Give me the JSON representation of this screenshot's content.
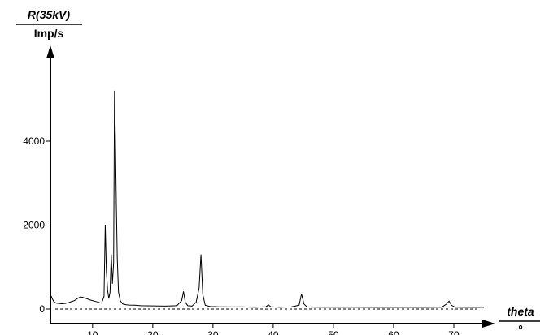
{
  "chart_data": {
    "type": "line",
    "ylabel": "R(35kV)",
    "yunit": "Imp/s",
    "xlabel": "theta",
    "xunit": "°",
    "xlim": [
      3,
      75
    ],
    "ylim": [
      0,
      6000
    ],
    "yticks": [
      0,
      2000,
      4000
    ],
    "xticks": [
      10,
      20,
      30,
      40,
      50,
      60,
      70
    ],
    "baseline": 0,
    "grid": false,
    "series": [
      {
        "x": [
          3,
          3.3,
          3.6,
          4,
          4.5,
          5,
          5.5,
          6,
          6.5,
          7,
          7.5,
          8,
          8.5,
          9,
          9.5,
          10,
          10.5,
          11,
          11.5,
          11.9,
          12.1,
          12.3,
          12.5,
          12.7,
          12.9,
          13.1,
          13.3,
          13.5,
          13.65,
          13.8,
          13.95,
          14.1,
          14.3,
          14.6,
          15,
          15.5,
          16,
          17,
          18,
          20,
          22,
          24,
          24.8,
          25.1,
          25.4,
          25.8,
          26.5,
          27.2,
          27.7,
          28.0,
          28.3,
          28.7,
          29.5,
          31,
          33,
          35,
          37,
          38.8,
          39.2,
          39.6,
          41,
          43,
          44.3,
          44.7,
          45.1,
          45.6,
          47,
          50,
          53,
          56,
          59,
          62,
          65,
          68,
          68.8,
          69.2,
          69.6,
          70.2,
          72,
          74,
          75
        ],
        "y": [
          350,
          250,
          170,
          140,
          130,
          125,
          135,
          150,
          175,
          200,
          250,
          290,
          270,
          250,
          220,
          200,
          180,
          160,
          140,
          300,
          2000,
          900,
          450,
          250,
          400,
          1300,
          600,
          1100,
          5200,
          4000,
          2400,
          1200,
          400,
          200,
          120,
          105,
          95,
          90,
          80,
          75,
          70,
          80,
          200,
          420,
          160,
          80,
          70,
          160,
          500,
          1300,
          350,
          90,
          60,
          55,
          50,
          50,
          45,
          55,
          100,
          55,
          45,
          50,
          90,
          360,
          120,
          50,
          45,
          42,
          42,
          40,
          40,
          40,
          40,
          45,
          120,
          190,
          90,
          45,
          40,
          40,
          40
        ]
      }
    ]
  }
}
